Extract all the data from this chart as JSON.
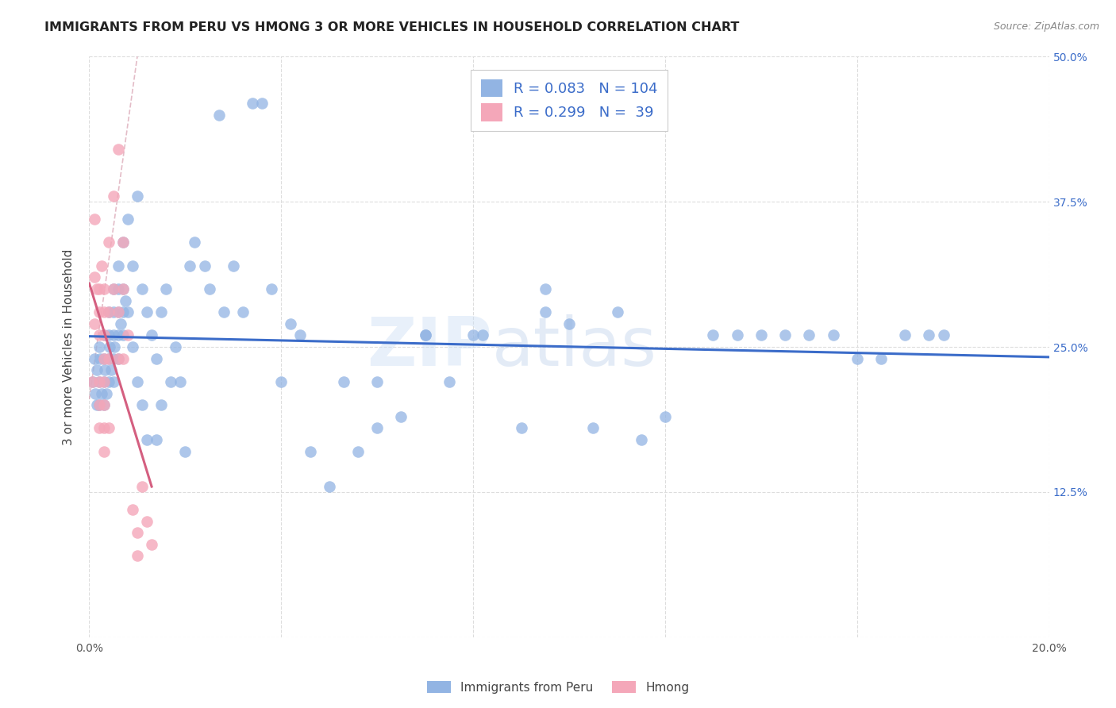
{
  "title": "IMMIGRANTS FROM PERU VS HMONG 3 OR MORE VEHICLES IN HOUSEHOLD CORRELATION CHART",
  "source": "Source: ZipAtlas.com",
  "ylabel": "3 or more Vehicles in Household",
  "xlim": [
    0.0,
    0.2
  ],
  "ylim": [
    0.0,
    0.5
  ],
  "xticks": [
    0.0,
    0.04,
    0.08,
    0.12,
    0.16,
    0.2
  ],
  "xticklabels": [
    "0.0%",
    "",
    "",
    "",
    "",
    "20.0%"
  ],
  "yticks": [
    0.0,
    0.125,
    0.25,
    0.375,
    0.5
  ],
  "yticklabels": [
    "",
    "12.5%",
    "25.0%",
    "37.5%",
    "50.0%"
  ],
  "peru_R": 0.083,
  "peru_N": 104,
  "hmong_R": 0.299,
  "hmong_N": 39,
  "peru_color": "#92b4e3",
  "hmong_color": "#f4a7b9",
  "peru_line_color": "#3b6cc9",
  "hmong_line_color": "#d45f80",
  "background_color": "#ffffff",
  "grid_color": "#dddddd",
  "peru_x": [
    0.0008,
    0.001,
    0.0012,
    0.0015,
    0.0015,
    0.002,
    0.002,
    0.002,
    0.0022,
    0.0025,
    0.003,
    0.003,
    0.003,
    0.003,
    0.0032,
    0.0035,
    0.004,
    0.004,
    0.004,
    0.004,
    0.0042,
    0.0045,
    0.005,
    0.005,
    0.005,
    0.005,
    0.005,
    0.0052,
    0.006,
    0.006,
    0.006,
    0.006,
    0.006,
    0.0065,
    0.007,
    0.007,
    0.007,
    0.007,
    0.0075,
    0.008,
    0.008,
    0.009,
    0.009,
    0.01,
    0.01,
    0.011,
    0.011,
    0.012,
    0.012,
    0.013,
    0.014,
    0.014,
    0.015,
    0.015,
    0.016,
    0.017,
    0.018,
    0.019,
    0.02,
    0.021,
    0.022,
    0.024,
    0.025,
    0.027,
    0.028,
    0.03,
    0.032,
    0.034,
    0.036,
    0.038,
    0.04,
    0.042,
    0.044,
    0.046,
    0.05,
    0.053,
    0.056,
    0.06,
    0.065,
    0.07,
    0.075,
    0.082,
    0.09,
    0.095,
    0.1,
    0.105,
    0.11,
    0.12,
    0.13,
    0.14,
    0.15,
    0.16,
    0.17,
    0.178,
    0.06,
    0.07,
    0.08,
    0.095,
    0.115,
    0.135,
    0.145,
    0.155,
    0.165,
    0.175
  ],
  "peru_y": [
    0.22,
    0.24,
    0.21,
    0.23,
    0.2,
    0.25,
    0.22,
    0.2,
    0.24,
    0.21,
    0.26,
    0.24,
    0.22,
    0.2,
    0.23,
    0.21,
    0.28,
    0.26,
    0.24,
    0.22,
    0.25,
    0.23,
    0.3,
    0.28,
    0.26,
    0.24,
    0.22,
    0.25,
    0.32,
    0.3,
    0.28,
    0.26,
    0.24,
    0.27,
    0.34,
    0.3,
    0.28,
    0.26,
    0.29,
    0.36,
    0.28,
    0.32,
    0.25,
    0.38,
    0.22,
    0.3,
    0.2,
    0.28,
    0.17,
    0.26,
    0.24,
    0.17,
    0.28,
    0.2,
    0.3,
    0.22,
    0.25,
    0.22,
    0.16,
    0.32,
    0.34,
    0.32,
    0.3,
    0.45,
    0.28,
    0.32,
    0.28,
    0.46,
    0.46,
    0.3,
    0.22,
    0.27,
    0.26,
    0.16,
    0.13,
    0.22,
    0.16,
    0.22,
    0.19,
    0.26,
    0.22,
    0.26,
    0.18,
    0.28,
    0.27,
    0.18,
    0.28,
    0.19,
    0.26,
    0.26,
    0.26,
    0.24,
    0.26,
    0.26,
    0.18,
    0.26,
    0.26,
    0.3,
    0.17,
    0.26,
    0.26,
    0.26,
    0.24,
    0.26
  ],
  "hmong_x": [
    0.0005,
    0.001,
    0.001,
    0.001,
    0.0015,
    0.002,
    0.002,
    0.002,
    0.002,
    0.002,
    0.002,
    0.0025,
    0.003,
    0.003,
    0.003,
    0.003,
    0.003,
    0.003,
    0.003,
    0.003,
    0.004,
    0.004,
    0.004,
    0.004,
    0.005,
    0.005,
    0.006,
    0.006,
    0.006,
    0.007,
    0.007,
    0.007,
    0.008,
    0.009,
    0.01,
    0.01,
    0.011,
    0.012,
    0.013
  ],
  "hmong_y": [
    0.22,
    0.36,
    0.31,
    0.27,
    0.3,
    0.3,
    0.28,
    0.26,
    0.22,
    0.2,
    0.18,
    0.32,
    0.3,
    0.28,
    0.26,
    0.24,
    0.22,
    0.2,
    0.18,
    0.16,
    0.34,
    0.28,
    0.24,
    0.18,
    0.38,
    0.3,
    0.42,
    0.28,
    0.24,
    0.34,
    0.3,
    0.24,
    0.26,
    0.11,
    0.09,
    0.07,
    0.13,
    0.1,
    0.08
  ]
}
